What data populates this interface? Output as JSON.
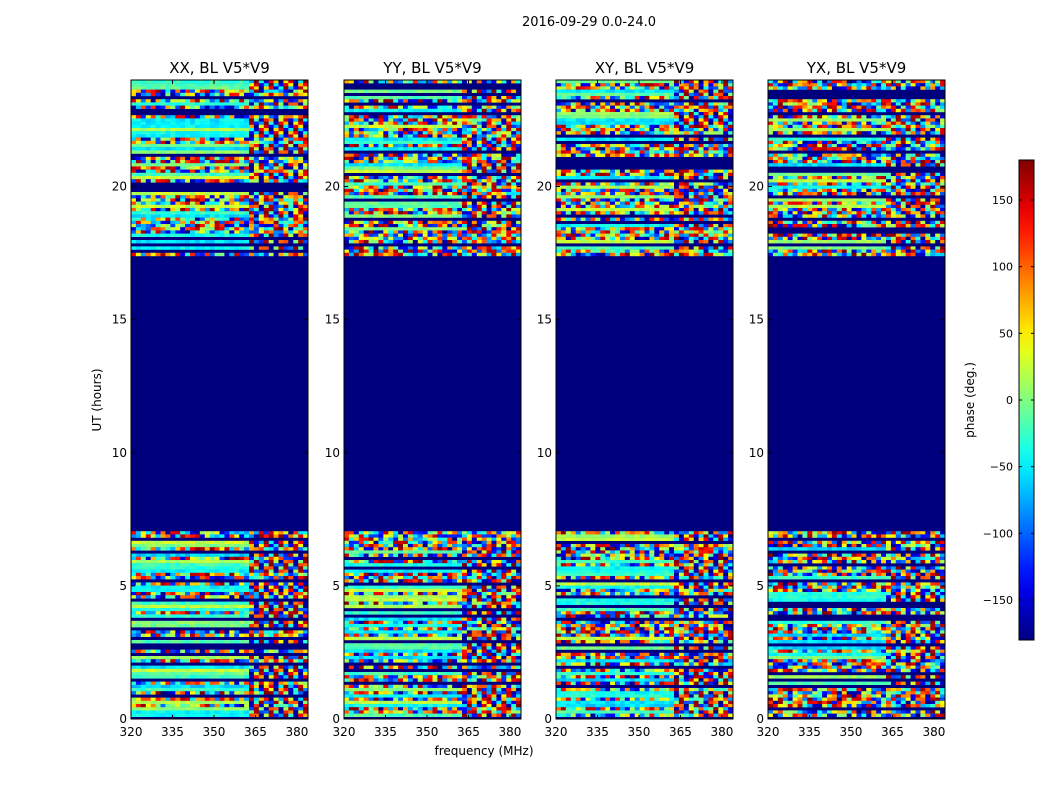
{
  "figure": {
    "suptitle": "2016-09-29 0.0-24.0",
    "xlabel": "frequency (MHz)",
    "ylabel": "UT (hours)"
  },
  "chart_data": {
    "type": "heatmap",
    "x_ticks": [
      320,
      335,
      350,
      365,
      380
    ],
    "x_range": [
      320,
      384
    ],
    "y_ticks": [
      0,
      5,
      10,
      15,
      20
    ],
    "y_range": [
      0,
      24
    ],
    "panels": [
      {
        "title": "XX, BL V5*V9",
        "key": "XX"
      },
      {
        "title": "YY, BL V5*V9",
        "key": "YY"
      },
      {
        "title": "XY, BL V5*V9",
        "key": "XY"
      },
      {
        "title": "YX, BL V5*V9",
        "key": "YX"
      }
    ],
    "colorbar": {
      "label": "phase (deg.)",
      "range": [
        -180,
        180
      ],
      "ticks": [
        150,
        100,
        50,
        0,
        -50,
        -100,
        -150
      ],
      "tick_labels": [
        "150",
        "100",
        "50",
        "0",
        "−50",
        "−100",
        "−150"
      ],
      "colormap": "jet"
    },
    "flagged_intervals_ut": [
      [
        7.0,
        17.4
      ],
      [
        17.75,
        17.85
      ],
      [
        0.0,
        0.05
      ]
    ],
    "notes": "Flagged intervals render dark navy (masked phase). Observed-data intervals show noisy phase; channels above ~362 MHz show fringe rippling."
  },
  "colors": {
    "flagged": "#00007f",
    "frame": "#000000",
    "background": "#ffffff"
  }
}
